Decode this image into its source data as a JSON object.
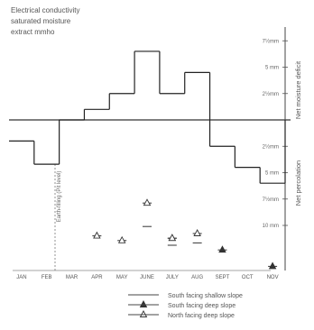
{
  "chart_data": {
    "type": "line",
    "title_lines": [
      "Electrical conductivity",
      "saturated moisture",
      "extract  mmho"
    ],
    "months": [
      "JAN",
      "FEB",
      "MAR",
      "APR",
      "MAY",
      "JUNE",
      "JULY",
      "AUG",
      "SEPT",
      "OCT",
      "NOV"
    ],
    "right_axis_labels": {
      "upper": "Net  moisture  deficit",
      "lower": "Net  percolation"
    },
    "right_ticks": [
      {
        "label": "7½mm",
        "value": 7.5
      },
      {
        "label": "5 mm",
        "value": 5
      },
      {
        "label": "2½mm",
        "value": 2.5
      },
      {
        "label": "2½mm",
        "value": -2.5
      },
      {
        "label": "5 mm",
        "value": -5
      },
      {
        "label": "7½mm",
        "value": -7.5
      },
      {
        "label": "10 mm",
        "value": -10
      }
    ],
    "vertical_note": "Earth-filling (Pit level)",
    "moisture_balance": {
      "unit": "mm",
      "ylim": [
        -10,
        10
      ],
      "values": [
        -2.0,
        -4.2,
        0,
        1.0,
        2.5,
        6.5,
        2.5,
        4.5,
        -2.5,
        -4.5,
        -6.0
      ]
    },
    "series": [
      {
        "name": "South facing shallow slope",
        "marker": "none",
        "points": [
          {
            "month": "JUNE",
            "value": 1.8
          },
          {
            "month": "JULY",
            "value": 1.0
          },
          {
            "month": "AUG",
            "value": 1.1
          }
        ]
      },
      {
        "name": "South facing deep slope",
        "marker": "filled-triangle",
        "points": [
          {
            "month": "JULY",
            "value": 1.3
          },
          {
            "month": "SEPT",
            "value": 0.8
          },
          {
            "month": "NOV",
            "value": 0.1
          }
        ]
      },
      {
        "name": "North facing deep slope",
        "marker": "open-triangle",
        "points": [
          {
            "month": "APR",
            "value": 1.4
          },
          {
            "month": "MAY",
            "value": 1.2
          },
          {
            "month": "JUNE",
            "value": 2.8
          },
          {
            "month": "JULY",
            "value": 1.3
          },
          {
            "month": "AUG",
            "value": 1.5
          }
        ]
      }
    ]
  }
}
